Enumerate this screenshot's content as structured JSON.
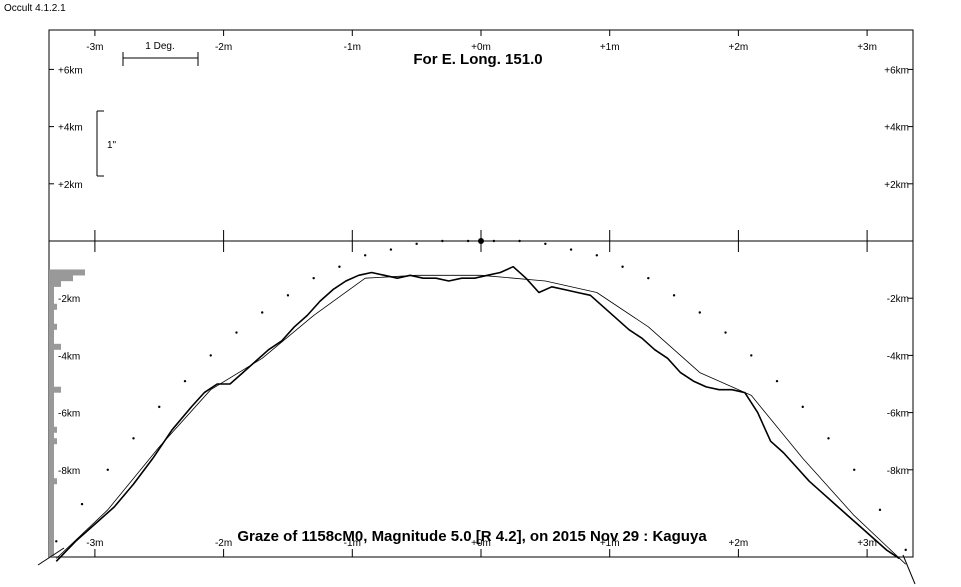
{
  "app": {
    "title": "Occult 4.1.2.1"
  },
  "chart_data": {
    "type": "line",
    "title": "For E. Long. 151.0",
    "caption": "Graze of  1158cM0,  Magnitude 5.0 [R 4.2],  on 2015 Nov 29  :  Kaguya",
    "xlabel": "",
    "ylabel": "",
    "x_tick_labels": [
      "-3m",
      "-2m",
      "-1m",
      "+0m",
      "+1m",
      "+2m",
      "+3m"
    ],
    "x_ticks": [
      -3,
      -2,
      -1,
      0,
      1,
      2,
      3
    ],
    "upper_y_tick_labels": [
      "+6km",
      "+4km",
      "+2km"
    ],
    "upper_y_ticks": [
      6,
      4,
      2
    ],
    "lower_y_tick_labels": [
      "-2km",
      "-4km",
      "-6km",
      "-8km"
    ],
    "lower_y_ticks": [
      -2,
      -4,
      -6,
      -8
    ],
    "xlim": [
      -3.35,
      3.35
    ],
    "ylim": [
      -11.2,
      7.2
    ],
    "scale_bar_label": "1 Deg.",
    "vertical_scale_label": "1\"",
    "series": [
      {
        "style": "profile",
        "x": [
          -3.3,
          -3.15,
          -3.0,
          -2.85,
          -2.7,
          -2.55,
          -2.4,
          -2.25,
          -2.15,
          -2.05,
          -1.95,
          -1.85,
          -1.75,
          -1.65,
          -1.55,
          -1.45,
          -1.35,
          -1.25,
          -1.15,
          -1.05,
          -0.95,
          -0.85,
          -0.75,
          -0.65,
          -0.55,
          -0.45,
          -0.35,
          -0.25,
          -0.15,
          -0.05,
          0.05,
          0.15,
          0.25,
          0.35,
          0.45,
          0.55,
          0.65,
          0.75,
          0.85,
          0.95,
          1.05,
          1.15,
          1.25,
          1.35,
          1.45,
          1.55,
          1.65,
          1.75,
          1.85,
          1.95,
          2.05,
          2.15,
          2.25,
          2.35,
          2.45,
          2.55,
          2.65,
          2.75,
          2.85,
          2.95,
          3.05,
          3.15,
          3.25
        ],
        "y": [
          -11.2,
          -10.5,
          -9.9,
          -9.3,
          -8.5,
          -7.6,
          -6.6,
          -5.8,
          -5.3,
          -5.0,
          -5.0,
          -4.6,
          -4.2,
          -3.8,
          -3.5,
          -3.0,
          -2.6,
          -2.1,
          -1.7,
          -1.4,
          -1.2,
          -1.1,
          -1.2,
          -1.3,
          -1.2,
          -1.3,
          -1.3,
          -1.4,
          -1.3,
          -1.3,
          -1.2,
          -1.1,
          -0.9,
          -1.3,
          -1.8,
          -1.6,
          -1.7,
          -1.8,
          -1.9,
          -2.3,
          -2.7,
          -3.1,
          -3.4,
          -3.8,
          -4.1,
          -4.6,
          -4.9,
          -5.1,
          -5.2,
          -5.2,
          -5.3,
          -6.0,
          -7.0,
          -7.4,
          -7.9,
          -8.4,
          -8.8,
          -9.2,
          -9.6,
          -10.0,
          -10.4,
          -10.8,
          -11.1
        ]
      },
      {
        "style": "smooth",
        "x": [
          -3.3,
          -2.9,
          -2.5,
          -2.1,
          -1.7,
          -1.3,
          -0.9,
          -0.5,
          0.0,
          0.5,
          0.9,
          1.3,
          1.7,
          2.1,
          2.5,
          2.9,
          3.3
        ],
        "y": [
          -11.1,
          -9.4,
          -7.2,
          -5.2,
          -4.1,
          -2.6,
          -1.3,
          -1.2,
          -1.2,
          -1.4,
          -1.8,
          -3.0,
          -4.6,
          -5.4,
          -7.6,
          -9.6,
          -11.3
        ]
      },
      {
        "style": "dotted-limb",
        "x": [
          -3.3,
          -3.1,
          -2.9,
          -2.7,
          -2.5,
          -2.3,
          -2.1,
          -1.9,
          -1.7,
          -1.5,
          -1.3,
          -1.1,
          -0.9,
          -0.7,
          -0.5,
          -0.3,
          -0.1,
          0.1,
          0.3,
          0.5,
          0.7,
          0.9,
          1.1,
          1.3,
          1.5,
          1.7,
          1.9,
          2.1,
          2.3,
          2.5,
          2.7,
          2.9,
          3.1,
          3.3
        ],
        "y": [
          -10.5,
          -9.2,
          -8.0,
          -6.9,
          -5.8,
          -4.9,
          -4.0,
          -3.2,
          -2.5,
          -1.9,
          -1.3,
          -0.9,
          -0.5,
          -0.3,
          -0.1,
          0.0,
          0.0,
          0.0,
          0.0,
          -0.1,
          -0.3,
          -0.5,
          -0.9,
          -1.3,
          -1.9,
          -2.5,
          -3.2,
          -4.0,
          -4.9,
          -5.8,
          -6.9,
          -8.0,
          -9.4,
          -10.8
        ]
      }
    ],
    "histogram": {
      "y": [
        -1.1,
        -1.3,
        -1.5,
        -2.3,
        -3.0,
        -3.7,
        -4.3,
        -5.2,
        -6.6,
        -7.0,
        -7.7,
        -8.4
      ],
      "values": [
        9,
        6,
        3,
        2,
        2,
        3,
        1,
        3,
        2,
        2,
        1,
        2
      ]
    },
    "marker_point": {
      "x": 0,
      "y": 0
    },
    "grid": false
  }
}
